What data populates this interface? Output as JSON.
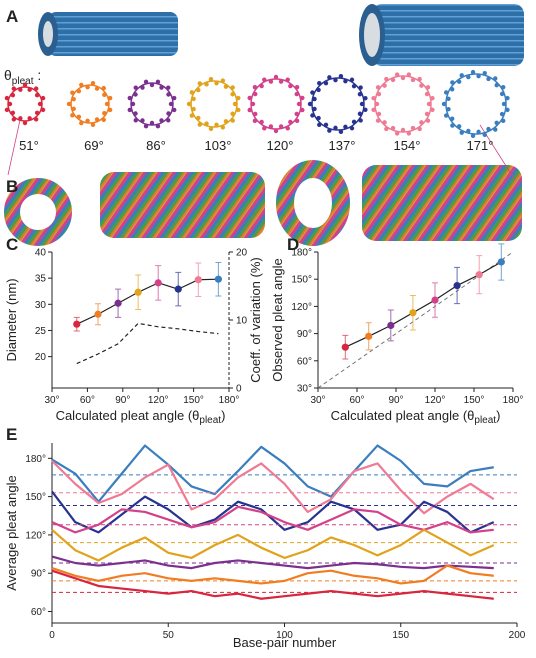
{
  "figure": {
    "labels": [
      "A",
      "B"
    ],
    "theta_label": [
      "θ",
      "pleat",
      " :"
    ],
    "ring_angles": [
      "51°",
      "69°",
      "86°",
      "103°",
      "120°",
      "137°",
      "154°",
      "171°"
    ],
    "ring_colors": [
      "#d7263d",
      "#f07d22",
      "#7b2f8e",
      "#e1a21c",
      "#d2418a",
      "#27338f",
      "#ef7a94",
      "#3a7ebf"
    ]
  },
  "chart_data": [
    {
      "type": "line",
      "label": "C",
      "xlabel": [
        "Calculated pleat angle (θ",
        "pleat",
        ")"
      ],
      "ylabel": "Diameter (nm)",
      "y2label": "Coeff. of variation (%)",
      "x": [
        51,
        69,
        86,
        103,
        120,
        137,
        154,
        171
      ],
      "series": [
        {
          "color": "#222222",
          "values": [
            26.2,
            28.1,
            30.2,
            32.3,
            34.1,
            32.9,
            34.7,
            34.8
          ],
          "errors": [
            1.3,
            2.0,
            2.7,
            3.3,
            3.3,
            3.2,
            3.2,
            3.2
          ],
          "point_colors": [
            "#d7263d",
            "#f07d22",
            "#7b2f8e",
            "#e1a21c",
            "#d2418a",
            "#27338f",
            "#ef7a94",
            "#3a7ebf"
          ]
        },
        {
          "color": "#222222",
          "axis": "y2",
          "dashed": true,
          "values": [
            3.6,
            5.0,
            6.5,
            9.5,
            9.0,
            8.7,
            8.3,
            8.0
          ]
        }
      ],
      "xlim": [
        30,
        180
      ],
      "xticks": [
        {
          "value": 30,
          "label": "30°"
        },
        {
          "value": 60,
          "label": "60°"
        },
        {
          "value": 90,
          "label": "90°"
        },
        {
          "value": 120,
          "label": "120°"
        },
        {
          "value": 150,
          "label": "150°"
        },
        {
          "value": 180,
          "label": "180°"
        }
      ],
      "ylim": [
        14,
        40
      ],
      "yticks": [
        20,
        25,
        30,
        35,
        40
      ],
      "y2lim": [
        0,
        20
      ],
      "y2ticks": [
        0,
        10,
        20
      ]
    },
    {
      "type": "line",
      "label": "D",
      "xlabel": [
        "Calculated pleat angle (θ",
        "pleat",
        ")"
      ],
      "ylabel": "Observed pleat angle",
      "identity_line": true,
      "x": [
        51,
        69,
        86,
        103,
        120,
        137,
        154,
        171
      ],
      "series": [
        {
          "color": "#222222",
          "values": [
            75,
            87,
            99,
            113,
            127,
            143,
            155,
            169
          ],
          "errors": [
            13,
            15,
            17,
            19,
            19,
            20,
            21,
            20
          ],
          "point_colors": [
            "#d7263d",
            "#f07d22",
            "#7b2f8e",
            "#e1a21c",
            "#d2418a",
            "#27338f",
            "#ef7a94",
            "#3a7ebf"
          ]
        }
      ],
      "xlim": [
        30,
        180
      ],
      "xticks": [
        {
          "value": 30,
          "label": "30°"
        },
        {
          "value": 60,
          "label": "60°"
        },
        {
          "value": 90,
          "label": "90°"
        },
        {
          "value": 120,
          "label": "120°"
        },
        {
          "value": 150,
          "label": "150°"
        },
        {
          "value": 180,
          "label": "180°"
        }
      ],
      "ylim": [
        30,
        180
      ],
      "yticks": [
        {
          "value": 30,
          "label": "30°"
        },
        {
          "value": 60,
          "label": "60°"
        },
        {
          "value": 90,
          "label": "90°"
        },
        {
          "value": 120,
          "label": "120°"
        },
        {
          "value": 150,
          "label": "150°"
        },
        {
          "value": 180,
          "label": "180°"
        }
      ]
    },
    {
      "type": "line",
      "label": "E",
      "xlabel": [
        "Base-pair number"
      ],
      "ylabel": "Average pleat angle",
      "x": [
        0,
        10,
        20,
        30,
        40,
        50,
        60,
        70,
        80,
        90,
        100,
        110,
        120,
        130,
        140,
        150,
        160,
        170,
        180,
        190
      ],
      "series": [
        {
          "color": "#3a7ebf",
          "reference": 167,
          "values": [
            179,
            168,
            146,
            168,
            190,
            175,
            158,
            152,
            170,
            189,
            176,
            158,
            150,
            170,
            190,
            178,
            160,
            158,
            170,
            173
          ]
        },
        {
          "color": "#ef7a94",
          "reference": 153,
          "values": [
            178,
            160,
            145,
            152,
            165,
            175,
            140,
            148,
            165,
            176,
            160,
            138,
            148,
            170,
            176,
            155,
            137,
            150,
            160,
            148
          ]
        },
        {
          "color": "#27338f",
          "reference": 143,
          "values": [
            154,
            130,
            122,
            136,
            150,
            140,
            126,
            132,
            146,
            140,
            124,
            130,
            146,
            140,
            124,
            128,
            146,
            138,
            122,
            130
          ]
        },
        {
          "color": "#d2418a",
          "reference": 128,
          "values": [
            130,
            122,
            128,
            140,
            138,
            132,
            126,
            130,
            142,
            138,
            130,
            124,
            132,
            140,
            138,
            128,
            124,
            130,
            122,
            124
          ]
        },
        {
          "color": "#e1a21c",
          "reference": 114,
          "values": [
            124,
            108,
            100,
            110,
            118,
            106,
            102,
            112,
            120,
            110,
            102,
            108,
            118,
            112,
            104,
            112,
            124,
            114,
            104,
            112
          ]
        },
        {
          "color": "#7b2f8e",
          "reference": 98,
          "values": [
            103,
            98,
            96,
            98,
            100,
            96,
            94,
            98,
            100,
            98,
            96,
            94,
            96,
            98,
            97,
            95,
            94,
            96,
            95,
            94
          ]
        },
        {
          "color": "#f07d22",
          "reference": 84,
          "values": [
            94,
            88,
            84,
            88,
            90,
            86,
            84,
            86,
            84,
            82,
            84,
            90,
            92,
            88,
            86,
            82,
            84,
            96,
            90,
            88
          ]
        },
        {
          "color": "#d7263d",
          "reference": 75,
          "values": [
            92,
            86,
            80,
            78,
            76,
            74,
            76,
            72,
            74,
            70,
            72,
            74,
            76,
            74,
            72,
            74,
            76,
            74,
            72,
            70
          ]
        }
      ],
      "xlim": [
        0,
        200
      ],
      "xticks": [
        0,
        50,
        100,
        150,
        200
      ],
      "ylim": [
        51,
        192
      ],
      "yticks": [
        {
          "value": 60,
          "label": "60°"
        },
        {
          "value": 90,
          "label": "90°"
        },
        {
          "value": 120,
          "label": "120°"
        },
        {
          "value": 150,
          "label": "150°"
        },
        {
          "value": 180,
          "label": "180°"
        }
      ]
    }
  ]
}
